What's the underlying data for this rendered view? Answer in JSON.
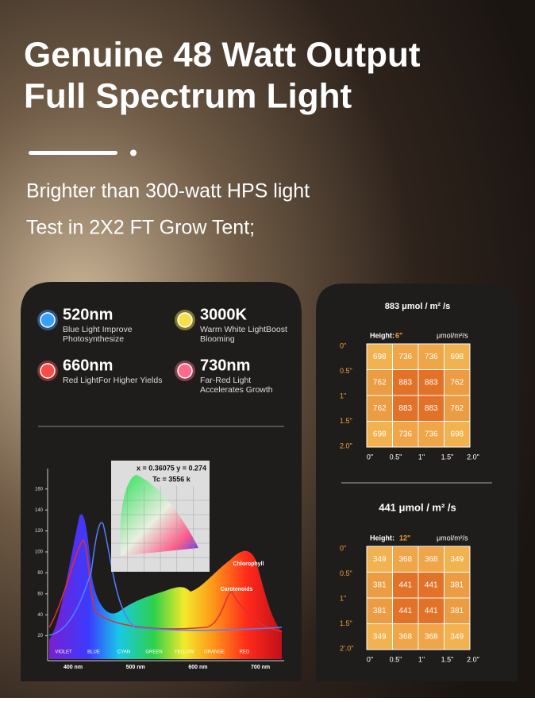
{
  "header": {
    "title_line1": "Genuine 48 Watt Output",
    "title_line2": "Full Spectrum Light",
    "subtitle_line1": "Brighter than 300-watt HPS light",
    "subtitle_line2": "Test in 2X2 FT Grow Tent;"
  },
  "features": [
    {
      "value": "520nm",
      "desc_line1": "Blue Light Improve",
      "desc_line2": "Photosynthesize",
      "color": "#3aa0ff"
    },
    {
      "value": "3000K",
      "desc_line1": "Warm White LightBoost",
      "desc_line2": "Blooming",
      "color": "#f4e04a"
    },
    {
      "value": "660nm",
      "desc_line1": "Red LightFor Higher Yields",
      "desc_line2": "",
      "color": "#ff4a4a"
    },
    {
      "value": "730nm",
      "desc_line1": "Far-Red Light",
      "desc_line2": "Accelerates Growth",
      "color": "#ff6a8a"
    }
  ],
  "spectrum": {
    "yticks": [
      20,
      40,
      60,
      80,
      100,
      120,
      140,
      160
    ],
    "xtick_labels": [
      "400 nm",
      "500 nm",
      "600 nm",
      "700 nm"
    ],
    "bands": [
      "VIOLET",
      "BLUE",
      "CYAN",
      "GREEN",
      "YELLOW",
      "ORANGE",
      "RED"
    ],
    "chromaticity": "x = 0.36075 y = 0.274",
    "cct": "Tc = 3556 k",
    "annotations": [
      "Chlorophyll",
      "Carotenoids"
    ]
  },
  "ppfd": [
    {
      "title": "883 μmol / m² /s",
      "height_label": "Height:",
      "height_value": "6\"",
      "unit": "μmol/m²/s",
      "row_labels": [
        "0\"",
        "0.5\"",
        "1\"",
        "1.5\"",
        "2.0\""
      ],
      "col_labels": [
        "0\"",
        "0.5\"",
        "1\"",
        "1.5\"",
        "2.0\""
      ],
      "grid": [
        [
          698,
          736,
          736,
          698
        ],
        [
          762,
          883,
          883,
          762
        ],
        [
          762,
          883,
          883,
          762
        ],
        [
          698,
          736,
          736,
          698
        ]
      ]
    },
    {
      "title": "441 μmol / m² /s",
      "height_label": "Height:",
      "height_value": "12\"",
      "unit": "μmol/m²/s",
      "row_labels": [
        "0\"",
        "0.5\"",
        "1\"",
        "1.5\"",
        "2'.0\""
      ],
      "col_labels": [
        "0\"",
        "0.5\"",
        "1\"",
        "1.5\"",
        "2.0\""
      ],
      "grid": [
        [
          349,
          368,
          368,
          349
        ],
        [
          381,
          441,
          441,
          381
        ],
        [
          381,
          441,
          441,
          381
        ],
        [
          349,
          368,
          368,
          349
        ]
      ]
    }
  ]
}
